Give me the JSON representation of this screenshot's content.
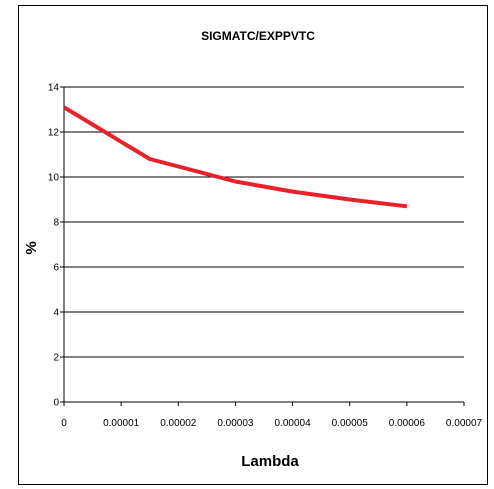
{
  "chart_data": {
    "type": "line",
    "title": "SIGMATC/EXPPVTC",
    "xlabel": "Lambda",
    "ylabel": "%",
    "xlim": [
      0,
      7e-05
    ],
    "ylim": [
      0,
      14
    ],
    "x_ticks": [
      "0",
      "0.00001",
      "0.00002",
      "0.00003",
      "0.00004",
      "0.00005",
      "0.00006",
      "0.00007"
    ],
    "y_ticks": [
      "0",
      "2",
      "4",
      "6",
      "8",
      "10",
      "12",
      "14"
    ],
    "grid": "horizontal",
    "legend": "none",
    "series": [
      {
        "color": "#e8202a",
        "points": [
          {
            "x": 0,
            "y": 13.1
          },
          {
            "x": 1.5e-05,
            "y": 10.8
          },
          {
            "x": 3e-05,
            "y": 9.8
          },
          {
            "x": 4e-05,
            "y": 9.35
          },
          {
            "x": 5e-05,
            "y": 9.0
          },
          {
            "x": 6e-05,
            "y": 8.7
          }
        ]
      }
    ]
  }
}
